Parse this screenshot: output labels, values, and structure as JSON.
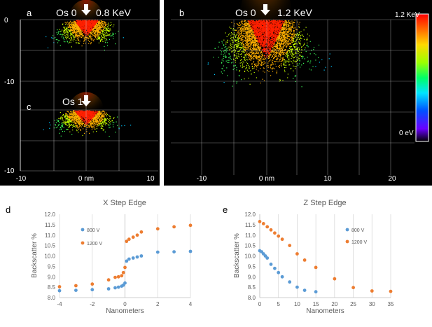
{
  "panels": {
    "a": {
      "letter": "a",
      "label_os": "Os 0",
      "energy": "0.8 KeV",
      "y_ticks": [
        "0",
        "-10"
      ]
    },
    "c": {
      "letter": "c",
      "label_os": "Os 1",
      "y_ticks": [
        "-10"
      ],
      "x_ticks": [
        "-10",
        "0 nm",
        "10"
      ]
    },
    "b": {
      "letter": "b",
      "label_os": "Os 0",
      "energy": "1.2 KeV",
      "x_ticks": [
        "-10",
        "0 nm",
        "10",
        "20"
      ]
    },
    "colorbar": {
      "top_label": "1.2 KeV",
      "bottom_label": "0 eV"
    }
  },
  "chart_data": [
    {
      "id": "d",
      "letter": "d",
      "type": "scatter",
      "title": "X Step Edge",
      "xlabel": "Nanometers",
      "ylabel": "Backscatter %",
      "xlim": [
        -4,
        4
      ],
      "ylim": [
        8.0,
        12.0
      ],
      "x_ticks": [
        -4,
        -2,
        0,
        2,
        4
      ],
      "y_ticks": [
        8.0,
        8.5,
        9.0,
        9.5,
        10.0,
        10.5,
        11.0,
        11.5,
        12.0
      ],
      "grid": "vertical",
      "legend_position": "top-left",
      "series": [
        {
          "name": "800 V",
          "color": "#5b9bd5",
          "points": [
            [
              -4,
              8.33
            ],
            [
              -3,
              8.35
            ],
            [
              -2,
              8.38
            ],
            [
              -1,
              8.42
            ],
            [
              -0.6,
              8.47
            ],
            [
              -0.4,
              8.5
            ],
            [
              -0.2,
              8.55
            ],
            [
              -0.1,
              8.6
            ],
            [
              0,
              8.7
            ],
            [
              0.1,
              9.75
            ],
            [
              0.25,
              9.85
            ],
            [
              0.5,
              9.9
            ],
            [
              0.75,
              9.95
            ],
            [
              1,
              10.0
            ],
            [
              2,
              10.18
            ],
            [
              3,
              10.2
            ],
            [
              4,
              10.22
            ]
          ]
        },
        {
          "name": "1200 V",
          "color": "#ed7d31",
          "points": [
            [
              -4,
              8.52
            ],
            [
              -3,
              8.57
            ],
            [
              -2,
              8.65
            ],
            [
              -1,
              8.85
            ],
            [
              -0.6,
              8.97
            ],
            [
              -0.4,
              9.0
            ],
            [
              -0.2,
              9.05
            ],
            [
              -0.1,
              9.2
            ],
            [
              0,
              9.45
            ],
            [
              0.1,
              10.7
            ],
            [
              0.25,
              10.8
            ],
            [
              0.5,
              10.9
            ],
            [
              0.75,
              11.0
            ],
            [
              1,
              11.15
            ],
            [
              2,
              11.3
            ],
            [
              3,
              11.4
            ],
            [
              4,
              11.47
            ]
          ]
        }
      ]
    },
    {
      "id": "e",
      "letter": "e",
      "type": "scatter",
      "title": "Z Step Edge",
      "xlabel": "Nanometers",
      "ylabel": "Backscatter %",
      "xlim": [
        0,
        35
      ],
      "ylim": [
        8.0,
        12.0
      ],
      "x_ticks": [
        0,
        5,
        10,
        15,
        20,
        25,
        30,
        35
      ],
      "y_ticks": [
        8.0,
        8.5,
        9.0,
        9.5,
        10.0,
        10.5,
        11.0,
        11.5,
        12.0
      ],
      "grid": "vertical",
      "legend_position": "right",
      "series": [
        {
          "name": "800 V",
          "color": "#5b9bd5",
          "points": [
            [
              0,
              10.25
            ],
            [
              0.5,
              10.2
            ],
            [
              1,
              10.1
            ],
            [
              1.5,
              10.0
            ],
            [
              2,
              9.9
            ],
            [
              3,
              9.6
            ],
            [
              4,
              9.4
            ],
            [
              5,
              9.2
            ],
            [
              6,
              9.0
            ],
            [
              8,
              8.75
            ],
            [
              10,
              8.5
            ],
            [
              12,
              8.35
            ],
            [
              15,
              8.28
            ]
          ]
        },
        {
          "name": "1200 V",
          "color": "#ed7d31",
          "points": [
            [
              0,
              11.65
            ],
            [
              1,
              11.55
            ],
            [
              2,
              11.4
            ],
            [
              3,
              11.25
            ],
            [
              4,
              11.1
            ],
            [
              5,
              10.95
            ],
            [
              6,
              10.8
            ],
            [
              8,
              10.5
            ],
            [
              10,
              10.1
            ],
            [
              12,
              9.8
            ],
            [
              15,
              9.45
            ],
            [
              20,
              8.9
            ],
            [
              25,
              8.48
            ],
            [
              30,
              8.32
            ],
            [
              35,
              8.3
            ]
          ]
        }
      ]
    }
  ]
}
